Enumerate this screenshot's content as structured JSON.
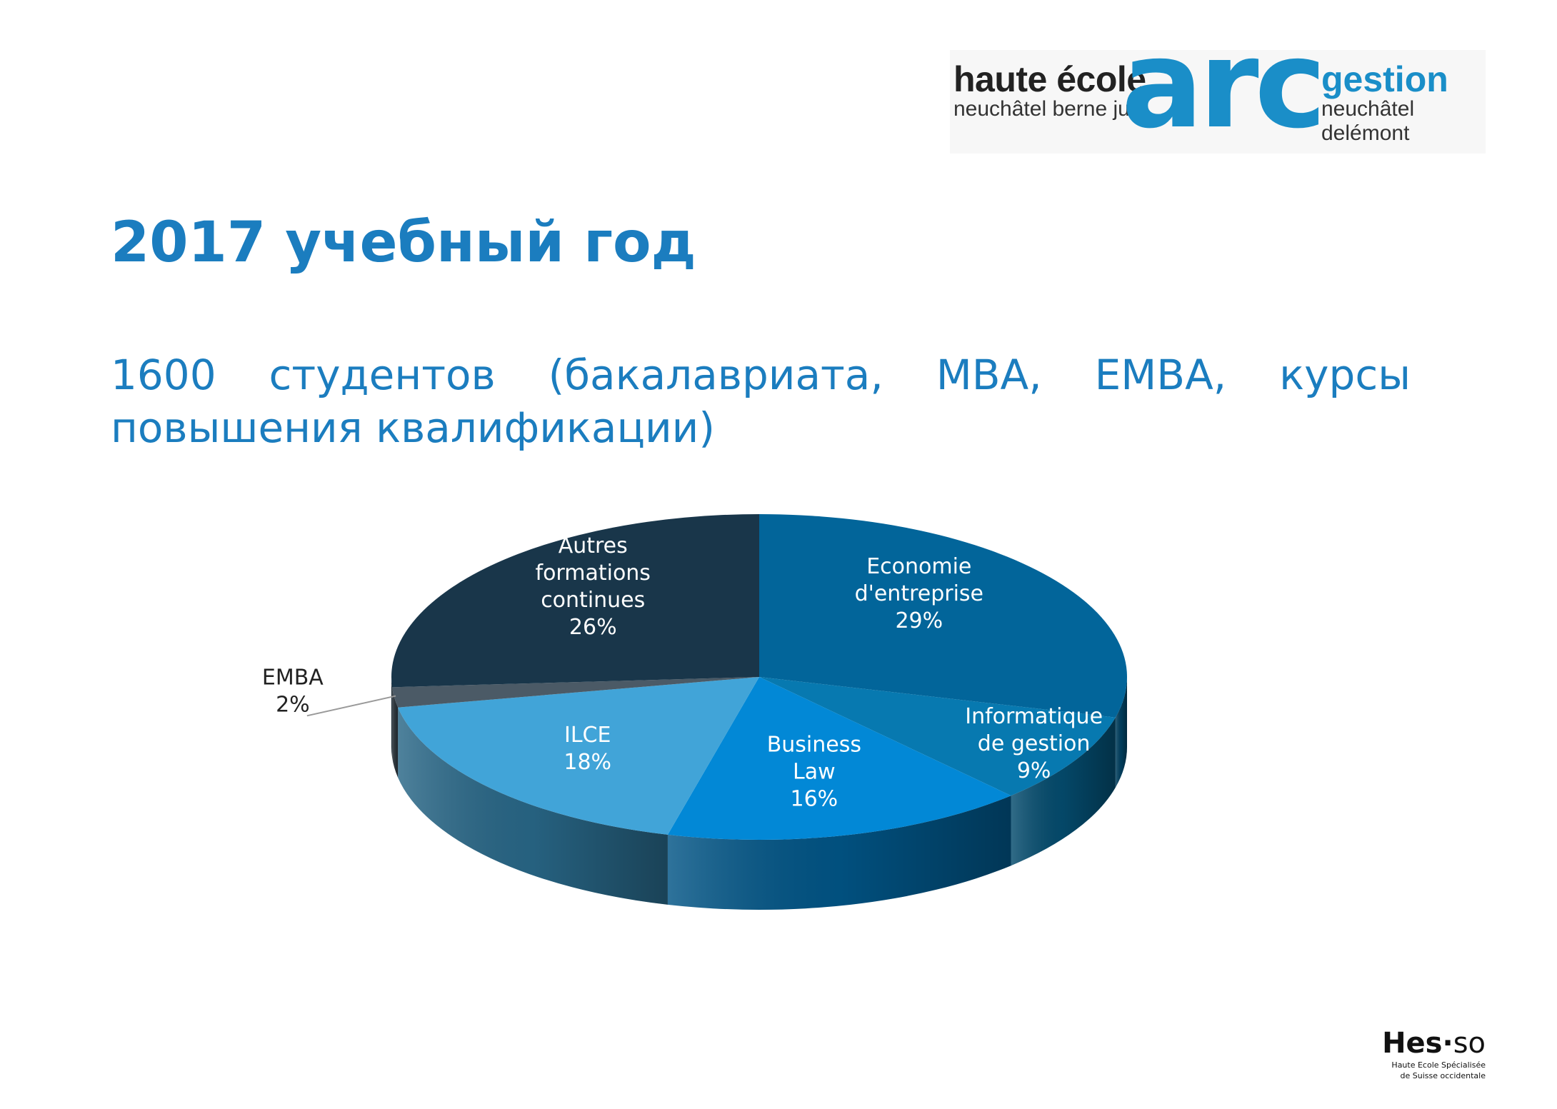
{
  "logo": {
    "line1_left": "haute école",
    "line2_left": "neuchâtel berne jura",
    "mark": "arc",
    "line1_right": "gestion",
    "line2_right": "neuchâtel delémont"
  },
  "title": "2017 учебный год",
  "subtitle": "1600 студентов (бакалавриата, MBA, EMBA, курсы повышения квалификации)",
  "chart_data": {
    "type": "pie",
    "style": "3d",
    "slices": [
      {
        "label": [
          "Economie",
          "d'entreprise"
        ],
        "percent_label": "29%",
        "value": 29,
        "color": "#02659a"
      },
      {
        "label": [
          "Informatique",
          "de gestion"
        ],
        "percent_label": "9%",
        "value": 9,
        "color": "#0779b0"
      },
      {
        "label": [
          "Business",
          "Law"
        ],
        "percent_label": "16%",
        "value": 16,
        "color": "#0288d6"
      },
      {
        "label": [
          "ILCE"
        ],
        "percent_label": "18%",
        "value": 18,
        "color": "#41a4d8"
      },
      {
        "label": [
          "EMBA"
        ],
        "percent_label": "2%",
        "value": 2,
        "color": "#4b5a66"
      },
      {
        "label": [
          "Autres",
          "formations",
          "continues"
        ],
        "percent_label": "26%",
        "value": 26,
        "color": "#19364a"
      }
    ],
    "label_color_inside": "#ffffff",
    "label_color_outside": "#222222"
  },
  "footer": {
    "brand_main": "Hes",
    "brand_dot": "·",
    "brand_suffix": "so",
    "line1": "Haute Ecole Spécialisée",
    "line2": "de Suisse occidentale"
  }
}
